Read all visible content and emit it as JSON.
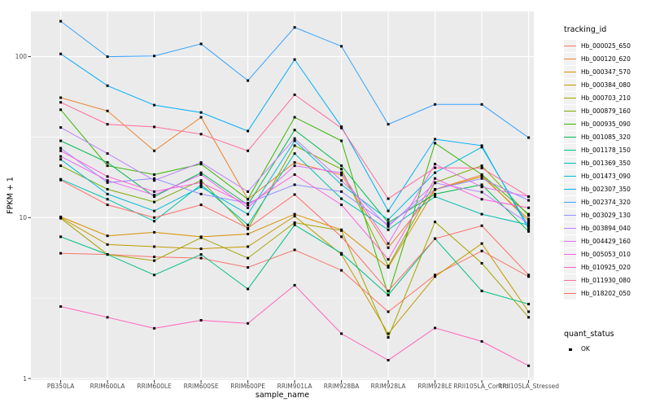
{
  "chart_data": {
    "type": "line",
    "title": "",
    "xlabel": "sample_name",
    "ylabel": "FPKM + 1",
    "x_categories": [
      "PB350LA",
      "RRIM600LA",
      "RRIM600LE",
      "RRIM600SE",
      "RRIM600PE",
      "RRIM901LA",
      "RRIM928BA",
      "RRIM928LA",
      "RRIM928LE",
      "RRII105LA_Control",
      "RRII105LA_Stressed"
    ],
    "y_axis": {
      "scale": "log10",
      "tick_labels": [
        "1",
        "10",
        "100"
      ],
      "tick_values": [
        1,
        10,
        100
      ],
      "minor_gridline_values": [
        3.162,
        31.62
      ],
      "ylim": [
        1,
        200
      ]
    },
    "legend": {
      "tracking_title": "tracking_id",
      "quant_title": "quant_status",
      "quant_items": [
        {
          "label": "OK",
          "marker": "black-square"
        }
      ]
    },
    "style": {
      "panel_bg": "#EBEBEB",
      "grid_color": "#FFFFFF",
      "tick_color": "#333333",
      "point_color": "#000000",
      "legend_key_bg": "#F2F2F2"
    },
    "series": [
      {
        "name": "Hb_000025_650",
        "color": "#F8766D",
        "values": [
          6.0,
          5.9,
          5.7,
          5.6,
          4.9,
          6.3,
          4.7,
          2.6,
          4.4,
          6.2,
          4.3
        ]
      },
      {
        "name": "Hb_000120_620",
        "color": "#EA8331",
        "values": [
          55.6,
          46,
          26,
          42,
          13,
          22,
          18.4,
          6.5,
          15,
          18.4,
          9.5
        ]
      },
      {
        "name": "Hb_000347_570",
        "color": "#D89000",
        "values": [
          10.1,
          7.7,
          8.1,
          7.6,
          7.9,
          10.5,
          8.4,
          4.9,
          14.9,
          18,
          9.8
        ]
      },
      {
        "name": "Hb_000384_080",
        "color": "#C09B00",
        "values": [
          10.0,
          6.8,
          6.6,
          6.4,
          6.6,
          10.2,
          5.9,
          1.9,
          4.3,
          6.9,
          2.6
        ]
      },
      {
        "name": "Hb_000703_210",
        "color": "#A3A500",
        "values": [
          9.9,
          5.9,
          5.4,
          7.5,
          5.6,
          9.3,
          8.3,
          1.8,
          9.4,
          5.2,
          2.4
        ]
      },
      {
        "name": "Hb_000879_160",
        "color": "#7CAE00",
        "values": [
          21,
          15,
          12.5,
          17,
          8.5,
          28,
          20,
          5.0,
          16.5,
          21,
          10.3
        ]
      },
      {
        "name": "Hb_000935_090",
        "color": "#39B600",
        "values": [
          46.8,
          21,
          18.5,
          21.5,
          13,
          42,
          30,
          3.3,
          29,
          18.5,
          10.5
        ]
      },
      {
        "name": "Hb_001085_320",
        "color": "#00BB4E",
        "values": [
          30,
          22,
          13.5,
          19,
          12,
          35,
          21,
          9.3,
          14,
          16,
          8.2
        ]
      },
      {
        "name": "Hb_001178_150",
        "color": "#00C087",
        "values": [
          7.6,
          5.9,
          4.4,
          5.9,
          3.6,
          9.0,
          6.0,
          3.3,
          7.4,
          3.5,
          2.9
        ]
      },
      {
        "name": "Hb_001369_350",
        "color": "#00C0AF",
        "values": [
          17.3,
          13,
          9.5,
          16,
          9.0,
          25,
          13.1,
          8.4,
          13.5,
          10.5,
          9.0
        ]
      },
      {
        "name": "Hb_001473_090",
        "color": "#00BCD8",
        "values": [
          23,
          14,
          11,
          15.5,
          10.5,
          30,
          16,
          9.7,
          19,
          27.4,
          8.8
        ]
      },
      {
        "name": "Hb_002307_350",
        "color": "#00B0F6",
        "values": [
          104,
          66,
          50,
          45,
          34.5,
          96,
          36.7,
          11,
          30.7,
          28,
          8.5
        ]
      },
      {
        "name": "Hb_002374_320",
        "color": "#35A2FF",
        "values": [
          166,
          100,
          101,
          120,
          71,
          152,
          116,
          38,
          50.5,
          50.5,
          31.4
        ]
      },
      {
        "name": "Hb_003029_130",
        "color": "#9590FF",
        "values": [
          27,
          16.5,
          17.5,
          14,
          12.3,
          16,
          14.5,
          9.0,
          15,
          17.5,
          12.8
        ]
      },
      {
        "name": "Hb_003894_040",
        "color": "#BC81FF",
        "values": [
          36.3,
          25,
          17,
          22,
          14.5,
          31,
          17,
          8.8,
          16.4,
          14.4,
          9.2
        ]
      },
      {
        "name": "Hb_004429_160",
        "color": "#E76BF3",
        "values": [
          24,
          17,
          13.8,
          18.5,
          11.5,
          21,
          19,
          6.9,
          21.5,
          15.5,
          13.5
        ]
      },
      {
        "name": "Hb_005053_010",
        "color": "#FA62DB",
        "values": [
          26,
          18,
          14.5,
          16.5,
          12,
          18.5,
          12,
          5.5,
          17.5,
          13,
          11.5
        ]
      },
      {
        "name": "Hb_010925_020",
        "color": "#FF62BC",
        "values": [
          2.8,
          2.4,
          2.05,
          2.3,
          2.2,
          3.8,
          1.9,
          1.3,
          2.06,
          1.7,
          1.2
        ]
      },
      {
        "name": "Hb_011930_080",
        "color": "#FF6A9A",
        "values": [
          52,
          38,
          36.6,
          33,
          26,
          58,
          36,
          13.1,
          20.4,
          20.3,
          13.5
        ]
      },
      {
        "name": "Hb_018202_050",
        "color": "#FF6C67",
        "values": [
          17.1,
          12,
          10,
          12,
          8.6,
          13.9,
          7.6,
          3.5,
          7.4,
          8.9,
          4.4
        ]
      }
    ]
  }
}
